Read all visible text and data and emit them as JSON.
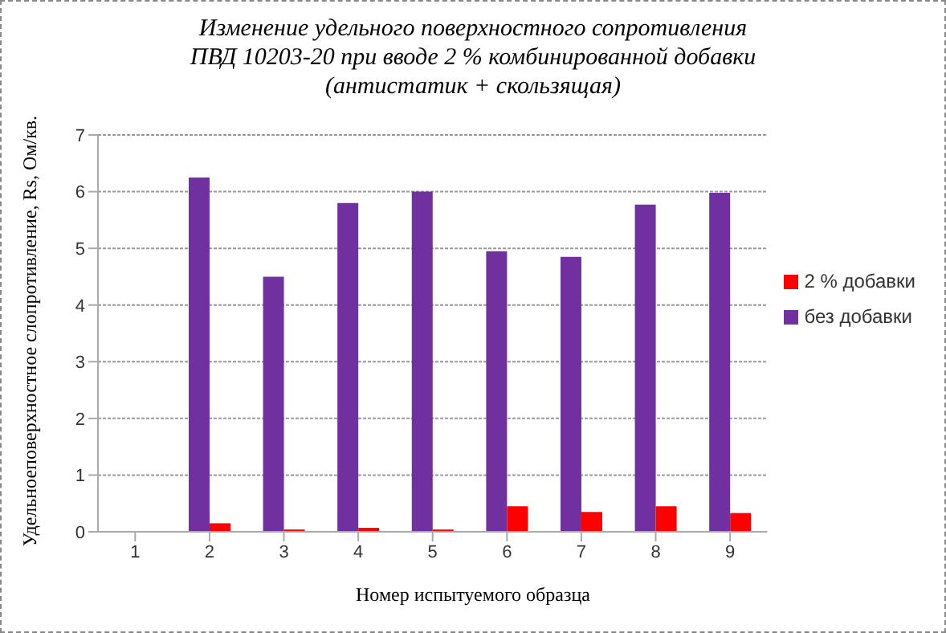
{
  "chart_data": {
    "type": "bar",
    "title": "Изменение удельного поверхностного сопротивления\nПВД 10203-20 при вводе 2 % комбинированной добавки\n(антистатик + скользящая)",
    "xlabel": "Номер испытуемого образца",
    "ylabel": "Удельноеповерхностное слопротивление, Rs, Ом/кв.",
    "categories": [
      "1",
      "2",
      "3",
      "4",
      "5",
      "6",
      "7",
      "8",
      "9"
    ],
    "series": [
      {
        "name": "без добавки",
        "color": "#7030a0",
        "values": [
          null,
          6.25,
          4.5,
          5.8,
          6.0,
          4.95,
          4.85,
          5.77,
          5.98
        ]
      },
      {
        "name": "2 % добавки",
        "color": "#ff0000",
        "values": [
          null,
          0.15,
          0.04,
          0.07,
          0.04,
          0.45,
          0.35,
          0.45,
          0.33
        ]
      }
    ],
    "ylim": [
      0,
      7
    ],
    "yticks": [
      0,
      1,
      2,
      3,
      4,
      5,
      6,
      7
    ],
    "grid": "y",
    "legend": "right"
  }
}
